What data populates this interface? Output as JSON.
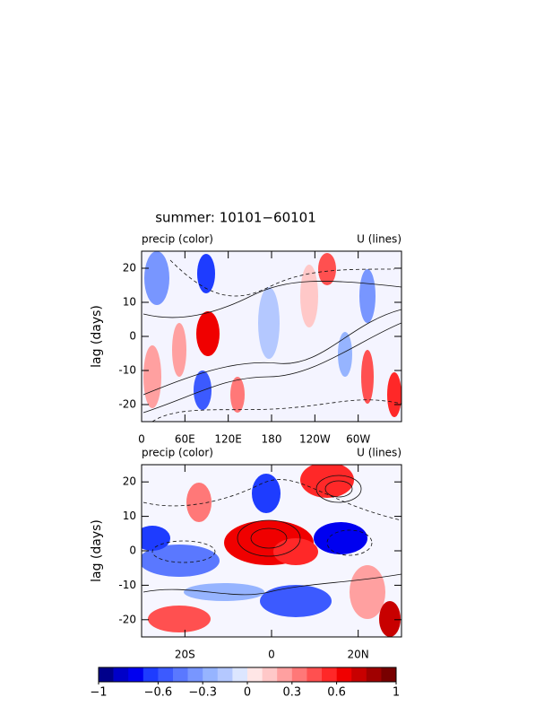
{
  "chart_data": [
    {
      "type": "hovmoller",
      "title": "summer: 10101−60101",
      "left_label": "precip (color)",
      "right_label": "U (lines)",
      "ylabel": "lag (days)",
      "xlim": [
        0,
        360
      ],
      "xticks": [
        0,
        {
          "value": 60,
          "label": "60E"
        },
        {
          "value": 120,
          "label": "120E"
        },
        180,
        {
          "value": 240,
          "label": "120W"
        },
        {
          "value": 300,
          "label": "60W"
        }
      ],
      "ylim": [
        -25,
        25
      ],
      "yticks": [
        -20,
        -10,
        0,
        10,
        20
      ]
    },
    {
      "type": "hovmoller",
      "left_label": "precip (color)",
      "right_label": "U (lines)",
      "ylabel": "lag (days)",
      "xlim": [
        -30,
        30
      ],
      "xticks": [
        {
          "value": -20,
          "label": "20S"
        },
        0,
        {
          "value": 20,
          "label": "20N"
        }
      ],
      "ylim": [
        -25,
        25
      ],
      "yticks": [
        -20,
        -10,
        0,
        10,
        20
      ]
    },
    {
      "type": "colorbar",
      "xlim": [
        -1,
        1
      ],
      "xticks": [
        {
          "value": -1,
          "label": "−1"
        },
        {
          "value": -0.6,
          "label": "−0.6"
        },
        {
          "value": -0.3,
          "label": "−0.3"
        },
        0,
        0.3,
        0.6,
        1
      ],
      "colors": [
        "#00008b",
        "#0000c8",
        "#0000f0",
        "#1e3cff",
        "#3c5aff",
        "#5a78ff",
        "#7896ff",
        "#96b4ff",
        "#b4c8ff",
        "#dce6ff",
        "#ffe6e6",
        "#ffc8c8",
        "#ffa0a0",
        "#ff7878",
        "#ff5050",
        "#ff2828",
        "#f00000",
        "#c80000",
        "#a00000",
        "#780000"
      ]
    }
  ]
}
